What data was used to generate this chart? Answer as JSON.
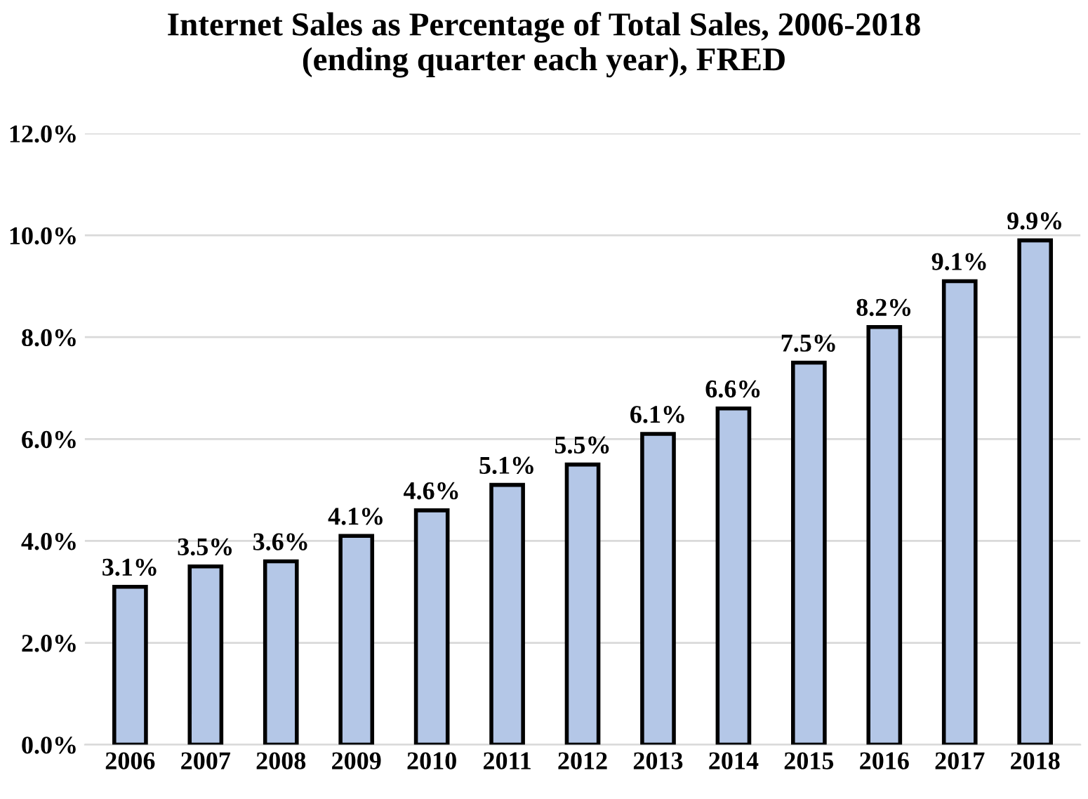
{
  "chart_data": {
    "type": "bar",
    "title": "Internet Sales as Percentage of Total Sales, 2006-2018\n(ending quarter each year), FRED",
    "categories": [
      "2006",
      "2007",
      "2008",
      "2009",
      "2010",
      "2011",
      "2012",
      "2013",
      "2014",
      "2015",
      "2016",
      "2017",
      "2018"
    ],
    "values": [
      3.1,
      3.5,
      3.6,
      4.1,
      4.6,
      5.1,
      5.5,
      6.1,
      6.6,
      7.5,
      8.2,
      9.1,
      9.9
    ],
    "value_labels": [
      "3.1%",
      "3.5%",
      "3.6%",
      "4.1%",
      "4.6%",
      "5.1%",
      "5.5%",
      "6.1%",
      "6.6%",
      "7.5%",
      "8.2%",
      "9.1%",
      "9.9%"
    ],
    "color": "#b4c7e7",
    "ylim": [
      0,
      12
    ],
    "yticks": [
      {
        "value": 0,
        "label": "0.0%"
      },
      {
        "value": 2,
        "label": "2.0%"
      },
      {
        "value": 4,
        "label": "4.0%"
      },
      {
        "value": 6,
        "label": "6.0%"
      },
      {
        "value": 8,
        "label": "8.0%"
      },
      {
        "value": 10,
        "label": "10.0%"
      },
      {
        "value": 12,
        "label": "12.0%"
      }
    ],
    "grid": "y"
  }
}
